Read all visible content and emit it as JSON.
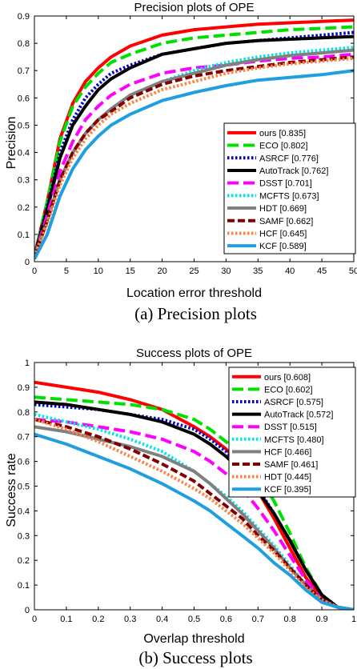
{
  "chart_data": [
    {
      "type": "line",
      "title": "Precision plots of OPE",
      "xlabel": "Location error threshold",
      "ylabel": "Precision",
      "caption": "(a) Precision plots",
      "xlim": [
        0,
        50
      ],
      "ylim": [
        0,
        0.9
      ],
      "xticks": [
        0,
        5,
        10,
        15,
        20,
        25,
        30,
        35,
        40,
        45,
        50
      ],
      "yticks": [
        0,
        0.1,
        0.2,
        0.3,
        0.4,
        0.5,
        0.6,
        0.7,
        0.8,
        0.9
      ],
      "grid": false,
      "legend_position": "bottom-right",
      "x": [
        0,
        2,
        4,
        6,
        8,
        10,
        12,
        15,
        20,
        25,
        30,
        35,
        40,
        45,
        50
      ],
      "series": [
        {
          "name": "ours [0.835]",
          "color": "#ff0000",
          "dash": "solid",
          "values": [
            0.02,
            0.22,
            0.45,
            0.58,
            0.66,
            0.71,
            0.75,
            0.79,
            0.83,
            0.85,
            0.86,
            0.87,
            0.875,
            0.88,
            0.885
          ]
        },
        {
          "name": "ECO [0.802]",
          "color": "#00e000",
          "dash": "longdash",
          "values": [
            0.02,
            0.22,
            0.44,
            0.57,
            0.64,
            0.69,
            0.73,
            0.76,
            0.8,
            0.82,
            0.83,
            0.84,
            0.85,
            0.855,
            0.86
          ]
        },
        {
          "name": "ASRCF [0.776]",
          "color": "#0000cc",
          "dash": "dotted",
          "values": [
            0.02,
            0.2,
            0.4,
            0.52,
            0.6,
            0.65,
            0.69,
            0.72,
            0.76,
            0.78,
            0.8,
            0.81,
            0.82,
            0.83,
            0.84
          ]
        },
        {
          "name": "AutoTrack [0.762]",
          "color": "#000000",
          "dash": "solid",
          "values": [
            0.02,
            0.19,
            0.38,
            0.5,
            0.57,
            0.63,
            0.67,
            0.71,
            0.76,
            0.78,
            0.8,
            0.81,
            0.815,
            0.82,
            0.825
          ]
        },
        {
          "name": "DSST [0.701]",
          "color": "#ff00ff",
          "dash": "longdash",
          "values": [
            0.02,
            0.17,
            0.33,
            0.44,
            0.52,
            0.57,
            0.61,
            0.65,
            0.69,
            0.71,
            0.72,
            0.735,
            0.745,
            0.75,
            0.76
          ]
        },
        {
          "name": "MCFTS [0.673]",
          "color": "#00e5e5",
          "dash": "dotted",
          "values": [
            0.02,
            0.15,
            0.3,
            0.4,
            0.47,
            0.52,
            0.56,
            0.61,
            0.66,
            0.7,
            0.73,
            0.75,
            0.765,
            0.775,
            0.785
          ]
        },
        {
          "name": "HDT [0.669]",
          "color": "#808080",
          "dash": "solid",
          "values": [
            0.02,
            0.15,
            0.3,
            0.4,
            0.47,
            0.52,
            0.56,
            0.61,
            0.66,
            0.69,
            0.72,
            0.74,
            0.755,
            0.765,
            0.775
          ]
        },
        {
          "name": "SAMF [0.662]",
          "color": "#800000",
          "dash": "dash",
          "values": [
            0.02,
            0.15,
            0.3,
            0.4,
            0.47,
            0.52,
            0.55,
            0.6,
            0.65,
            0.68,
            0.7,
            0.715,
            0.73,
            0.74,
            0.75
          ]
        },
        {
          "name": "HCF [0.645]",
          "color": "#ff8040",
          "dash": "dotted",
          "values": [
            0.02,
            0.14,
            0.28,
            0.38,
            0.45,
            0.5,
            0.54,
            0.58,
            0.63,
            0.66,
            0.69,
            0.71,
            0.725,
            0.735,
            0.745
          ]
        },
        {
          "name": "KCF [0.589]",
          "color": "#1f9fe0",
          "dash": "solid",
          "values": [
            0.01,
            0.1,
            0.24,
            0.34,
            0.41,
            0.46,
            0.5,
            0.54,
            0.59,
            0.62,
            0.645,
            0.665,
            0.675,
            0.685,
            0.7
          ]
        }
      ]
    },
    {
      "type": "line",
      "title": "Success plots of OPE",
      "xlabel": "Overlap threshold",
      "ylabel": "Success rate",
      "caption": "(b) Success plots",
      "xlim": [
        0,
        1
      ],
      "ylim": [
        0,
        1
      ],
      "xticks": [
        0,
        0.1,
        0.2,
        0.3,
        0.4,
        0.5,
        0.6,
        0.7,
        0.8,
        0.9,
        1
      ],
      "yticks": [
        0,
        0.1,
        0.2,
        0.3,
        0.4,
        0.5,
        0.6,
        0.7,
        0.8,
        0.9,
        1
      ],
      "grid": false,
      "legend_position": "top-right",
      "x": [
        0,
        0.1,
        0.2,
        0.3,
        0.4,
        0.5,
        0.55,
        0.6,
        0.65,
        0.7,
        0.75,
        0.8,
        0.85,
        0.9,
        0.95,
        1.0
      ],
      "series": [
        {
          "name": "ours [0.608]",
          "color": "#ff0000",
          "dash": "solid",
          "values": [
            0.92,
            0.9,
            0.88,
            0.85,
            0.81,
            0.74,
            0.7,
            0.65,
            0.58,
            0.48,
            0.37,
            0.25,
            0.13,
            0.05,
            0.01,
            0.0
          ]
        },
        {
          "name": "ECO [0.602]",
          "color": "#00e000",
          "dash": "longdash",
          "values": [
            0.86,
            0.85,
            0.84,
            0.83,
            0.81,
            0.77,
            0.73,
            0.68,
            0.62,
            0.54,
            0.44,
            0.31,
            0.17,
            0.06,
            0.01,
            0.0
          ]
        },
        {
          "name": "ASRCF [0.575]",
          "color": "#0000cc",
          "dash": "dotted",
          "values": [
            0.83,
            0.82,
            0.81,
            0.79,
            0.77,
            0.73,
            0.69,
            0.64,
            0.57,
            0.49,
            0.39,
            0.28,
            0.16,
            0.06,
            0.01,
            0.0
          ]
        },
        {
          "name": "AutoTrack [0.572]",
          "color": "#000000",
          "dash": "solid",
          "values": [
            0.84,
            0.83,
            0.81,
            0.79,
            0.76,
            0.71,
            0.67,
            0.62,
            0.56,
            0.48,
            0.39,
            0.28,
            0.16,
            0.06,
            0.01,
            0.0
          ]
        },
        {
          "name": "DSST [0.515]",
          "color": "#ff00ff",
          "dash": "longdash",
          "values": [
            0.77,
            0.76,
            0.74,
            0.72,
            0.69,
            0.64,
            0.6,
            0.55,
            0.49,
            0.41,
            0.32,
            0.22,
            0.12,
            0.04,
            0.01,
            0.0
          ]
        },
        {
          "name": "MCFTS [0.480]",
          "color": "#00e5e5",
          "dash": "dotted",
          "values": [
            0.79,
            0.76,
            0.73,
            0.69,
            0.64,
            0.56,
            0.51,
            0.46,
            0.4,
            0.33,
            0.26,
            0.18,
            0.1,
            0.04,
            0.01,
            0.0
          ]
        },
        {
          "name": "HCF [0.466]",
          "color": "#808080",
          "dash": "solid",
          "values": [
            0.74,
            0.72,
            0.69,
            0.66,
            0.62,
            0.56,
            0.51,
            0.45,
            0.39,
            0.32,
            0.25,
            0.17,
            0.1,
            0.04,
            0.01,
            0.0
          ]
        },
        {
          "name": "SAMF [0.461]",
          "color": "#800000",
          "dash": "dash",
          "values": [
            0.77,
            0.74,
            0.7,
            0.65,
            0.59,
            0.52,
            0.47,
            0.42,
            0.37,
            0.3,
            0.24,
            0.17,
            0.1,
            0.04,
            0.01,
            0.0
          ]
        },
        {
          "name": "HDT [0.445]",
          "color": "#ff8040",
          "dash": "dotted",
          "values": [
            0.77,
            0.73,
            0.68,
            0.62,
            0.56,
            0.49,
            0.45,
            0.4,
            0.35,
            0.29,
            0.23,
            0.16,
            0.09,
            0.04,
            0.01,
            0.0
          ]
        },
        {
          "name": "KCF [0.395]",
          "color": "#1f9fe0",
          "dash": "solid",
          "values": [
            0.71,
            0.67,
            0.62,
            0.57,
            0.51,
            0.44,
            0.4,
            0.35,
            0.3,
            0.25,
            0.19,
            0.14,
            0.08,
            0.03,
            0.01,
            0.0
          ]
        }
      ]
    }
  ]
}
